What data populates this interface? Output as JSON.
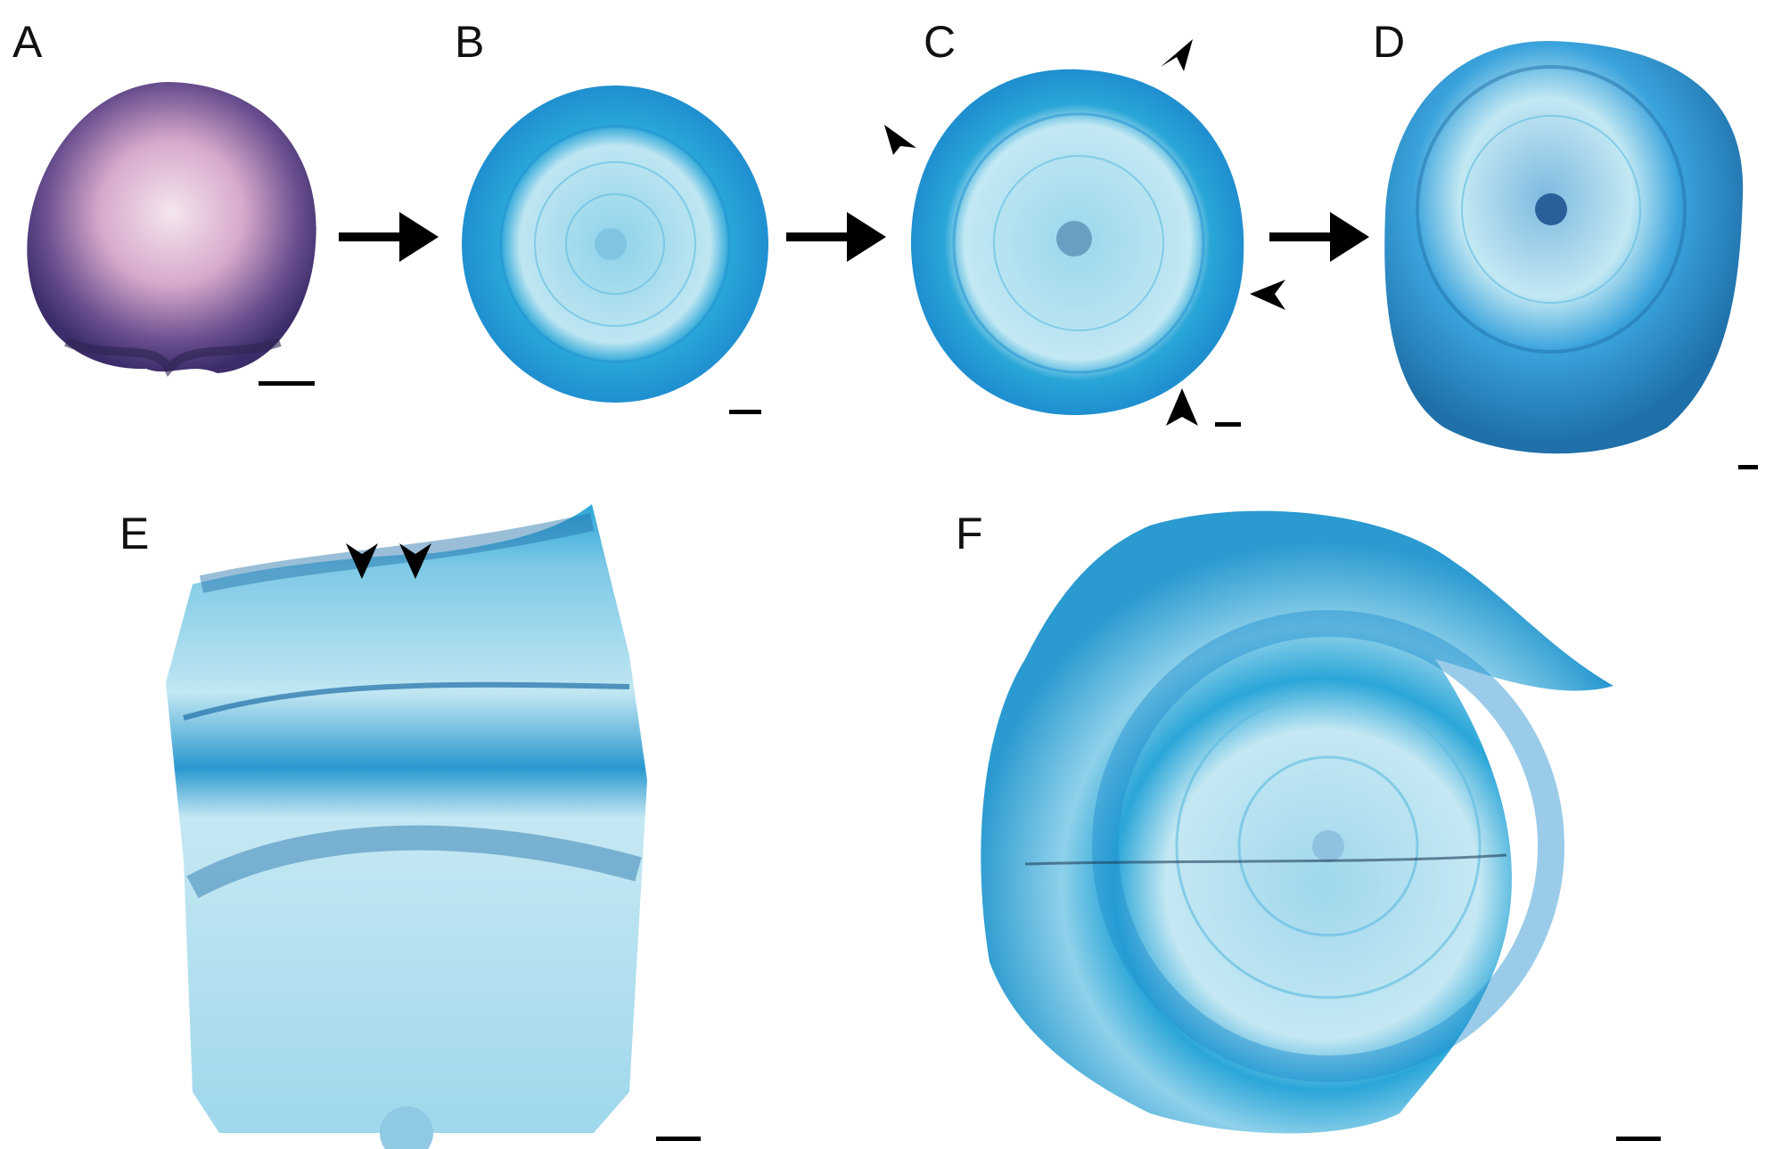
{
  "figure": {
    "panels": [
      {
        "id": "A",
        "label": "A",
        "stain": "#6a4f8f"
      },
      {
        "id": "B",
        "label": "B",
        "stain": "#2aa6d8"
      },
      {
        "id": "C",
        "label": "C",
        "stain": "#2aa6d8"
      },
      {
        "id": "D",
        "label": "D",
        "stain": "#1f8fcf"
      },
      {
        "id": "E",
        "label": "E",
        "stain": "#2aa6d8"
      },
      {
        "id": "F",
        "label": "F",
        "stain": "#2aa6d8"
      }
    ],
    "colors": {
      "background": "#ffffff",
      "primary_stain": "#2aa6d8",
      "dark_stain": "#1f6fa8",
      "pale_xylem": "#bfe6f2",
      "early_section": "#6a4f8f",
      "arrow": "#000000"
    },
    "flow_arrows": 3,
    "arrowheads": {
      "C": 4,
      "E": 2
    },
    "scale_bars": 6
  }
}
